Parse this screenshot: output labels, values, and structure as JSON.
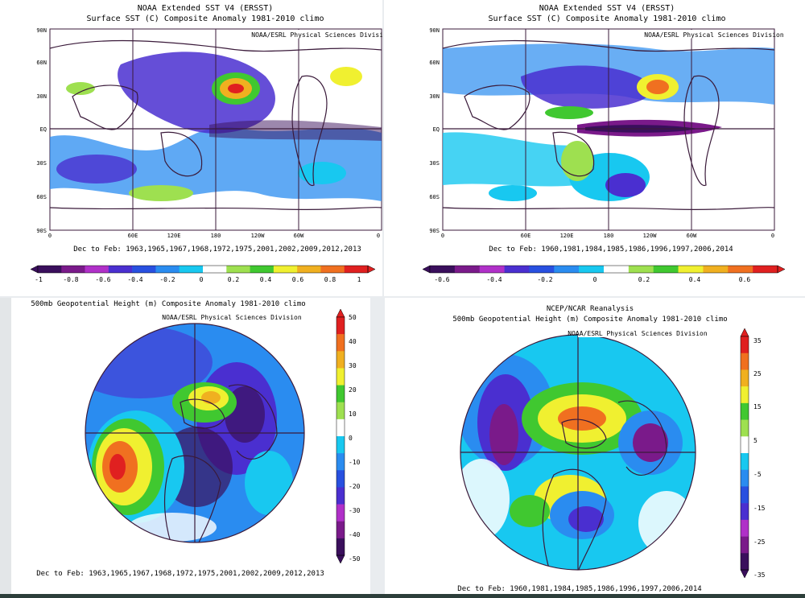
{
  "panels": [
    {
      "id": "sst-1",
      "title": "NOAA Extended SST V4 (ERSST)",
      "subtitle": "Surface SST (C) Composite Anomaly 1981-2010 climo",
      "credit": "NOAA/ESRL Physical Sciences Division",
      "lat_labels": [
        "90N",
        "60N",
        "30N",
        "EQ",
        "30S",
        "60S",
        "90S"
      ],
      "lon_labels": [
        "0",
        "60E",
        "120E",
        "180",
        "120W",
        "60W",
        "0"
      ],
      "caption": "Dec to Feb: 1963,1965,1967,1968,1972,1975,2001,2002,2009,2012,2013",
      "colorbar_labels": [
        "-1",
        "-0.8",
        "-0.6",
        "-0.4",
        "-0.2",
        "0",
        "0.2",
        "0.4",
        "0.6",
        "0.8",
        "1"
      ]
    },
    {
      "id": "sst-2",
      "title": "NOAA Extended SST V4 (ERSST)",
      "subtitle": "Surface SST (C) Composite Anomaly 1981-2010 climo",
      "credit": "NOAA/ESRL Physical Sciences Division",
      "lat_labels": [
        "90N",
        "60N",
        "30N",
        "EQ",
        "30S",
        "60S",
        "90S"
      ],
      "lon_labels": [
        "0",
        "60E",
        "120E",
        "180",
        "120W",
        "60W",
        "0"
      ],
      "caption": "Dec to Feb: 1960,1981,1984,1985,1986,1996,1997,2006,2014",
      "colorbar_labels": [
        "-0.6",
        "-0.4",
        "-0.2",
        "0",
        "0.2",
        "0.4",
        "0.6"
      ]
    },
    {
      "id": "hgt-1",
      "title": "",
      "subtitle": "500mb Geopotential Height (m) Composite Anomaly 1981-2010 climo",
      "credit": "NOAA/ESRL Physical Sciences Division",
      "caption": "Dec to Feb: 1963,1965,1967,1968,1972,1975,2001,2002,2009,2012,2013",
      "colorbar_labels": [
        "50",
        "40",
        "30",
        "20",
        "10",
        "0",
        "-10",
        "-20",
        "-30",
        "-40",
        "-50"
      ]
    },
    {
      "id": "hgt-2",
      "title": "NCEP/NCAR Reanalysis",
      "subtitle": "500mb Geopotential Height (m) Composite Anomaly 1981-2010 climo",
      "credit": "NOAA/ESRL Physical Sciences Division",
      "caption": "Dec to Feb: 1960,1981,1984,1985,1986,1996,1997,2006,2014",
      "colorbar_labels": [
        "35",
        "25",
        "15",
        "5",
        "-5",
        "-15",
        "-25",
        "-35"
      ]
    }
  ],
  "colors": {
    "scale": [
      "#3a0f5c",
      "#7a1a8a",
      "#b030c8",
      "#4a2fd0",
      "#2850e0",
      "#2a8cf0",
      "#18c8f0",
      "#ffffff",
      "#9ee050",
      "#40c830",
      "#f0f030",
      "#f0b020",
      "#f07020",
      "#e02020"
    ]
  }
}
